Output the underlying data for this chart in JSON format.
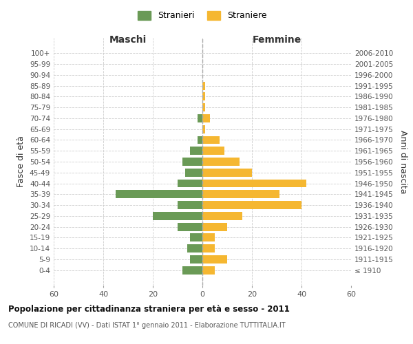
{
  "age_groups": [
    "100+",
    "95-99",
    "90-94",
    "85-89",
    "80-84",
    "75-79",
    "70-74",
    "65-69",
    "60-64",
    "55-59",
    "50-54",
    "45-49",
    "40-44",
    "35-39",
    "30-34",
    "25-29",
    "20-24",
    "15-19",
    "10-14",
    "5-9",
    "0-4"
  ],
  "birth_years": [
    "≤ 1910",
    "1911-1915",
    "1916-1920",
    "1921-1925",
    "1926-1930",
    "1931-1935",
    "1936-1940",
    "1941-1945",
    "1946-1950",
    "1951-1955",
    "1956-1960",
    "1961-1965",
    "1966-1970",
    "1971-1975",
    "1976-1980",
    "1981-1985",
    "1986-1990",
    "1991-1995",
    "1996-2000",
    "2001-2005",
    "2006-2010"
  ],
  "maschi": [
    0,
    0,
    0,
    0,
    0,
    0,
    2,
    0,
    2,
    5,
    8,
    7,
    10,
    35,
    10,
    20,
    10,
    5,
    6,
    5,
    8
  ],
  "femmine": [
    0,
    0,
    0,
    1,
    1,
    1,
    3,
    1,
    7,
    9,
    15,
    20,
    42,
    31,
    40,
    16,
    10,
    5,
    5,
    10,
    5
  ],
  "maschi_color": "#6a9a56",
  "femmine_color": "#f5b731",
  "background_color": "#ffffff",
  "grid_color": "#cccccc",
  "title": "Popolazione per cittadinanza straniera per età e sesso - 2011",
  "subtitle": "COMUNE DI RICADI (VV) - Dati ISTAT 1° gennaio 2011 - Elaborazione TUTTITALIA.IT",
  "xlabel_left": "Maschi",
  "xlabel_right": "Femmine",
  "ylabel_left": "Fasce di età",
  "ylabel_right": "Anni di nascita",
  "legend_maschi": "Stranieri",
  "legend_femmine": "Straniere",
  "xlim": 60
}
